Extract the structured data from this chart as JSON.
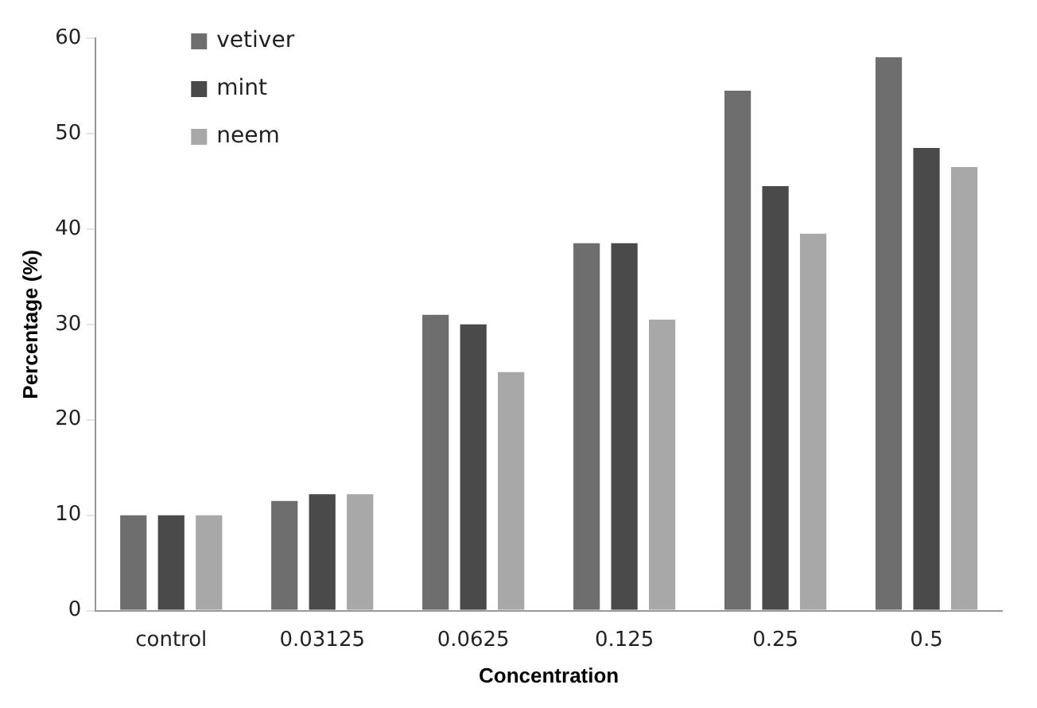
{
  "chart_data": {
    "type": "bar",
    "xlabel": "Concentration",
    "ylabel": "Percentage (%)",
    "categories": [
      "control",
      "0.03125",
      "0.0625",
      "0.125",
      "0.25",
      "0.5"
    ],
    "series": [
      {
        "name": "vetiver",
        "color": "#6e6e6e",
        "values": [
          10,
          11.5,
          31,
          38.5,
          54.5,
          58
        ]
      },
      {
        "name": "mint",
        "color": "#4a4a4a",
        "values": [
          10,
          12.2,
          30,
          38.5,
          44.5,
          48.5
        ]
      },
      {
        "name": "neem",
        "color": "#a8a8a8",
        "values": [
          10,
          12.2,
          25,
          30.5,
          39.5,
          46.5
        ]
      }
    ],
    "ylim": [
      0,
      60
    ],
    "yticks": [
      0,
      10,
      20,
      30,
      40,
      50,
      60
    ],
    "grid": false,
    "legend": "top left"
  }
}
